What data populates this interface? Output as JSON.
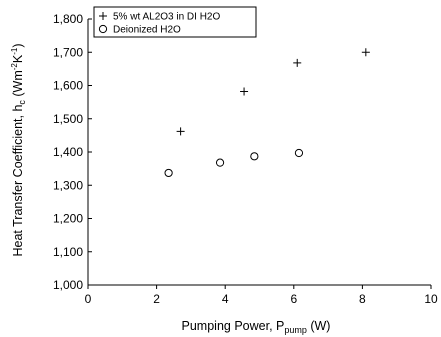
{
  "chart_data": {
    "type": "scatter",
    "xlabel": {
      "main": "Pumping Power, P",
      "sub": "pump",
      "unit": " (W)"
    },
    "ylabel": {
      "main": "Heat Transfer Coefficient,  h",
      "sub": "c",
      "unit_pre": " (Wm",
      "sup1": "-2",
      "mid": "K",
      "sup2": "-1",
      "unit_post": ")"
    },
    "xlim": [
      0,
      10
    ],
    "ylim": [
      1000,
      1800
    ],
    "x_ticks": [
      0,
      2,
      4,
      6,
      8,
      10
    ],
    "y_ticks": [
      1000,
      1100,
      1200,
      1300,
      1400,
      1500,
      1600,
      1700,
      1800
    ],
    "y_tick_labels": [
      "1,000",
      "1,100",
      "1,200",
      "1,300",
      "1,400",
      "1,500",
      "1,600",
      "1,700",
      "1,800"
    ],
    "grid": false,
    "legend_position": "top-left",
    "series": [
      {
        "name": "5% wt AL2O3 in DI H2O",
        "marker": "plus",
        "points": [
          [
            2.7,
            1462
          ],
          [
            4.55,
            1582
          ],
          [
            6.1,
            1668
          ],
          [
            8.1,
            1700
          ]
        ]
      },
      {
        "name": "Deionized H2O",
        "marker": "circle",
        "points": [
          [
            2.35,
            1337
          ],
          [
            3.85,
            1368
          ],
          [
            4.85,
            1387
          ],
          [
            6.15,
            1397
          ]
        ]
      }
    ]
  }
}
